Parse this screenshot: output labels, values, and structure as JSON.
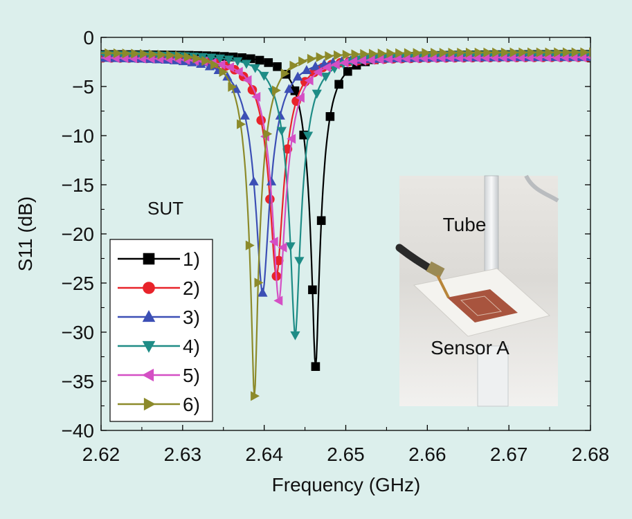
{
  "chart_data": {
    "type": "line",
    "title": "",
    "xlabel": "Frequency (GHz)",
    "ylabel": "S11 (dB)",
    "xlim": [
      2.62,
      2.68
    ],
    "ylim": [
      -40,
      0
    ],
    "xticks": [
      2.62,
      2.63,
      2.64,
      2.65,
      2.66,
      2.67,
      2.68
    ],
    "xtick_labels": [
      "2.62",
      "2.63",
      "2.64",
      "2.65",
      "2.66",
      "2.67",
      "2.68"
    ],
    "yticks": [
      0,
      -5,
      -10,
      -15,
      -20,
      -25,
      -30,
      -35,
      -40
    ],
    "ytick_labels": [
      "0",
      "−5",
      "−10",
      "−15",
      "−20",
      "−25",
      "−30",
      "−35",
      "−40"
    ],
    "grid": false,
    "legend_position": "bottom-left",
    "legend_title": "SUT",
    "series": [
      {
        "name": "1)",
        "color": "#000000",
        "marker": "square",
        "f0": 2.6463,
        "depth": -33.5,
        "base": -1.7,
        "width": 0.0038
      },
      {
        "name": "2)",
        "color": "#e8232a",
        "marker": "circle",
        "f0": 2.6415,
        "depth": -24.3,
        "base": -2.0,
        "width": 0.0043
      },
      {
        "name": "3)",
        "color": "#3c4fb5",
        "marker": "triangle-up",
        "f0": 2.6398,
        "depth": -26.0,
        "base": -2.0,
        "width": 0.0046
      },
      {
        "name": "4)",
        "color": "#1e8c86",
        "marker": "triangle-down",
        "f0": 2.6438,
        "depth": -30.3,
        "base": -1.7,
        "width": 0.0042
      },
      {
        "name": "5)",
        "color": "#d44fc4",
        "marker": "triangle-left",
        "f0": 2.6418,
        "depth": -26.8,
        "base": -2.0,
        "width": 0.0044
      },
      {
        "name": "6)",
        "color": "#8c8a2a",
        "marker": "triangle-right",
        "f0": 2.6388,
        "depth": -36.5,
        "base": -1.5,
        "width": 0.004
      }
    ],
    "inset": {
      "labels": [
        "Tube",
        "Sensor A"
      ],
      "description": "Photo of patch sensor with SMA connector and tube"
    }
  }
}
